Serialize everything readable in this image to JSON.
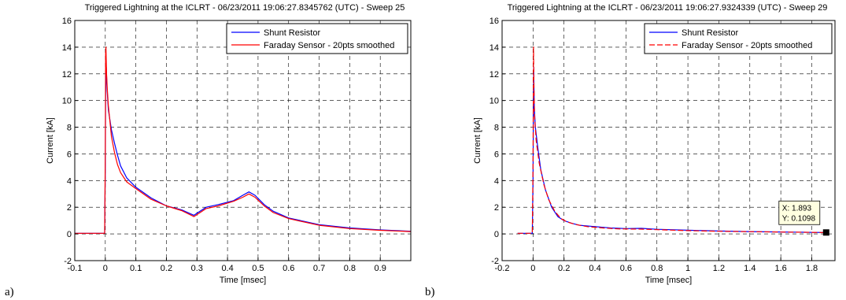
{
  "chart_data": [
    {
      "type": "line",
      "panel_label": "a)",
      "title": "Triggered Lightning at the ICLRT - 06/23/2011 19:06:27.8345762 (UTC) - Sweep 25",
      "xlabel": "Time [msec]",
      "ylabel": "Current [kA]",
      "xlim": [
        -0.1,
        1.0
      ],
      "ylim": [
        -2,
        16
      ],
      "xticks": [
        -0.1,
        0,
        0.1,
        0.2,
        0.3,
        0.4,
        0.5,
        0.6,
        0.7,
        0.8,
        0.9
      ],
      "xtick_labels": [
        "-0.1",
        "0",
        "0.1",
        "0.2",
        "0.3",
        "0.4",
        "0.5",
        "0.6",
        "0.7",
        "0.8",
        "0.9"
      ],
      "yticks": [
        -2,
        0,
        2,
        4,
        6,
        8,
        10,
        12,
        14,
        16
      ],
      "ytick_labels": [
        "-2",
        "0",
        "2",
        "4",
        "6",
        "8",
        "10",
        "12",
        "14",
        "16"
      ],
      "grid": true,
      "legend_position": "top-right",
      "series": [
        {
          "name": "Shunt Resistor",
          "color": "#0000ff",
          "dash": "solid",
          "x": [
            -0.1,
            -0.002,
            0.0,
            0.001,
            0.003,
            0.006,
            0.01,
            0.02,
            0.03,
            0.04,
            0.05,
            0.07,
            0.1,
            0.15,
            0.2,
            0.25,
            0.29,
            0.33,
            0.37,
            0.42,
            0.45,
            0.47,
            0.49,
            0.52,
            0.55,
            0.6,
            0.7,
            0.8,
            0.9,
            1.0
          ],
          "y": [
            0.05,
            0.05,
            5.0,
            10.5,
            12.5,
            10.8,
            9.3,
            7.8,
            6.8,
            5.9,
            5.1,
            4.2,
            3.5,
            2.7,
            2.1,
            1.8,
            1.4,
            2.0,
            2.2,
            2.5,
            2.9,
            3.15,
            2.9,
            2.2,
            1.7,
            1.2,
            0.7,
            0.45,
            0.3,
            0.2
          ]
        },
        {
          "name": "Faraday Sensor - 20pts smoothed",
          "color": "#ff0000",
          "dash": "solid",
          "x": [
            -0.1,
            -0.002,
            0.0,
            0.001,
            0.002,
            0.004,
            0.007,
            0.01,
            0.02,
            0.03,
            0.04,
            0.05,
            0.07,
            0.1,
            0.15,
            0.2,
            0.25,
            0.29,
            0.33,
            0.37,
            0.42,
            0.45,
            0.47,
            0.49,
            0.52,
            0.55,
            0.6,
            0.7,
            0.8,
            0.9,
            1.0
          ],
          "y": [
            0.05,
            0.05,
            6.0,
            13.5,
            14.0,
            12.0,
            10.7,
            9.6,
            7.3,
            6.1,
            5.2,
            4.6,
            3.9,
            3.4,
            2.6,
            2.1,
            1.75,
            1.3,
            1.9,
            2.1,
            2.45,
            2.75,
            3.0,
            2.75,
            2.1,
            1.6,
            1.15,
            0.65,
            0.4,
            0.27,
            0.18
          ]
        }
      ]
    },
    {
      "type": "line",
      "panel_label": "b)",
      "title": "Triggered Lightning at the ICLRT - 06/23/2011 19:06:27.9324339 (UTC) - Sweep 29",
      "xlabel": "Time [msec]",
      "ylabel": "Current [kA]",
      "xlim": [
        -0.2,
        1.95
      ],
      "ylim": [
        -2,
        16
      ],
      "xticks": [
        -0.2,
        0,
        0.2,
        0.4,
        0.6,
        0.8,
        1.0,
        1.2,
        1.4,
        1.6,
        1.8
      ],
      "xtick_labels": [
        "-0.2",
        "0",
        "0.2",
        "0.4",
        "0.6",
        "0.8",
        "1",
        "1.2",
        "1.4",
        "1.6",
        "1.8"
      ],
      "yticks": [
        -2,
        0,
        2,
        4,
        6,
        8,
        10,
        12,
        14,
        16
      ],
      "ytick_labels": [
        "-2",
        "0",
        "2",
        "4",
        "6",
        "8",
        "10",
        "12",
        "14",
        "16"
      ],
      "grid": true,
      "legend_position": "top-right",
      "series": [
        {
          "name": "Shunt Resistor",
          "color": "#0000ff",
          "dash": "solid",
          "x": [
            -0.1,
            -0.005,
            0.0,
            0.004,
            0.008,
            0.015,
            0.03,
            0.05,
            0.08,
            0.12,
            0.16,
            0.2,
            0.25,
            0.3,
            0.4,
            0.5,
            0.6,
            0.7,
            0.8,
            1.0,
            1.2,
            1.4,
            1.6,
            1.8,
            1.893
          ],
          "y": [
            0.05,
            0.05,
            4.0,
            12.5,
            9.5,
            8.0,
            6.5,
            4.8,
            3.3,
            2.0,
            1.3,
            1.0,
            0.8,
            0.65,
            0.55,
            0.45,
            0.4,
            0.42,
            0.35,
            0.28,
            0.22,
            0.18,
            0.15,
            0.12,
            0.1098
          ]
        },
        {
          "name": "Faraday Sensor - 20pts smoothed",
          "color": "#ff0000",
          "dash": "dashed",
          "x": [
            -0.1,
            -0.005,
            0.0,
            0.003,
            0.006,
            0.01,
            0.02,
            0.04,
            0.07,
            0.1,
            0.14,
            0.18,
            0.22,
            0.28,
            0.35,
            0.45,
            0.55,
            0.7,
            0.85,
            1.0,
            1.2,
            1.4,
            1.6,
            1.8,
            1.89
          ],
          "y": [
            0.05,
            0.05,
            5.0,
            14.0,
            11.0,
            8.8,
            7.0,
            5.3,
            3.7,
            2.6,
            1.7,
            1.15,
            0.9,
            0.7,
            0.55,
            0.45,
            0.38,
            0.36,
            0.3,
            0.25,
            0.2,
            0.17,
            0.14,
            0.12,
            0.1
          ]
        }
      ],
      "datatip": {
        "x": 1.893,
        "y": 0.1098,
        "label_x": "X: 1.893",
        "label_y": "Y: 0.1098"
      }
    }
  ]
}
